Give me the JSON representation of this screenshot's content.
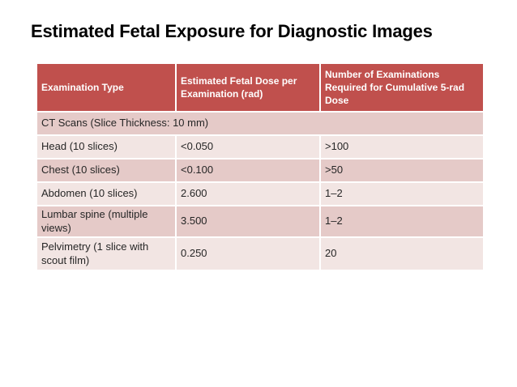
{
  "title": "Estimated Fetal Exposure for Diagnostic Images",
  "table": {
    "columns": [
      "Examination Type",
      "Estimated Fetal Dose per Examination (rad)",
      "Number of Examinations Required for Cumulative 5-rad Dose"
    ],
    "section_header": "CT Scans (Slice Thickness: 10 mm)",
    "rows": [
      {
        "exam": "Head (10 slices)",
        "dose": "<0.050",
        "examinations": ">100"
      },
      {
        "exam": "Chest (10 slices)",
        "dose": "<0.100",
        "examinations": ">50"
      },
      {
        "exam": "Abdomen (10 slices)",
        "dose": "2.600",
        "examinations": "1–2"
      },
      {
        "exam": "Lumbar spine (multiple views)",
        "dose": "3.500",
        "examinations": "1–2"
      },
      {
        "exam": "Pelvimetry (1 slice with scout film)",
        "dose": "0.250",
        "examinations": "20"
      }
    ]
  },
  "theme": {
    "header_bg": "#c0504d",
    "band_dark": "#e5cac8",
    "band_light": "#f2e5e3",
    "header_text": "#ffffff",
    "body_text": "#262626",
    "title_text": "#000000"
  }
}
